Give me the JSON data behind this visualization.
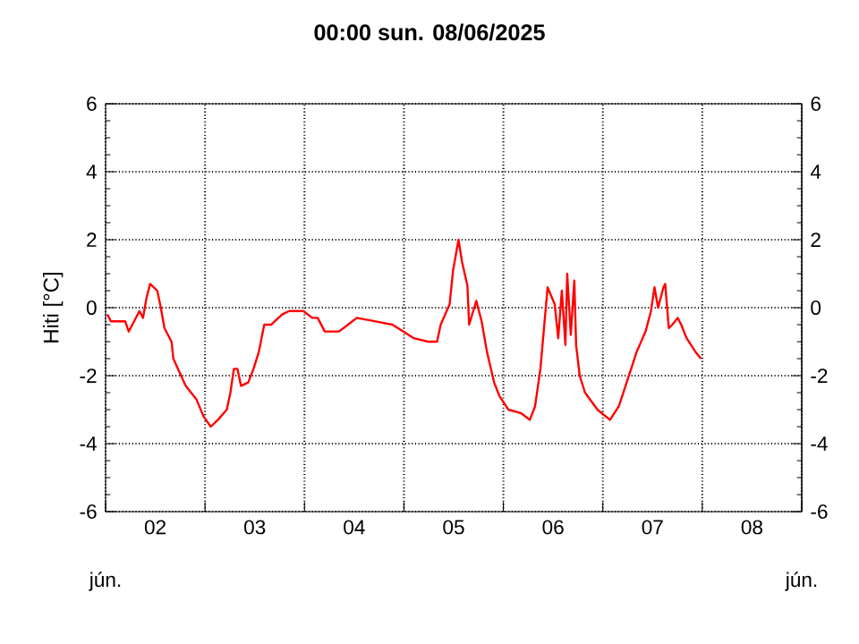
{
  "chart_data": {
    "type": "line",
    "title": "00:00   sun.  08/06/2025",
    "ylabel": "Hiti [°C]",
    "annotations": [
      "jún.",
      "jún."
    ],
    "xlim": [
      "2025-06-02T00:00",
      "2025-06-09T00:00"
    ],
    "xticks": [
      {
        "value": "2025-06-02T00:00",
        "label": null
      },
      {
        "value": "2025-06-02T12:00",
        "label": "02"
      },
      {
        "value": "2025-06-03T00:00",
        "label": null
      },
      {
        "value": "2025-06-03T12:00",
        "label": "03"
      },
      {
        "value": "2025-06-04T00:00",
        "label": null
      },
      {
        "value": "2025-06-04T12:00",
        "label": "04"
      },
      {
        "value": "2025-06-05T00:00",
        "label": null
      },
      {
        "value": "2025-06-05T12:00",
        "label": "05"
      },
      {
        "value": "2025-06-06T00:00",
        "label": null
      },
      {
        "value": "2025-06-06T12:00",
        "label": "06"
      },
      {
        "value": "2025-06-07T00:00",
        "label": null
      },
      {
        "value": "2025-06-07T12:00",
        "label": "07"
      },
      {
        "value": "2025-06-08T00:00",
        "label": null
      },
      {
        "value": "2025-06-08T12:00",
        "label": "08"
      },
      {
        "value": "2025-06-09T00:00",
        "label": null
      }
    ],
    "ylim": [
      -6,
      6
    ],
    "yticks": [
      -6,
      -4,
      -2,
      0,
      2,
      4,
      6
    ],
    "y2lim": [
      -6,
      6
    ],
    "y2ticks": [
      -6,
      -4,
      -2,
      0,
      2,
      4,
      6
    ],
    "grid": true,
    "marker": "none",
    "line_style": "solid",
    "series": [
      {
        "color": "#ff0000",
        "x": [
          "2025-06-02T00:26",
          "2025-06-02T01:17",
          "2025-06-02T04:44",
          "2025-06-02T05:35",
          "2025-06-02T06:53",
          "2025-06-02T08:10",
          "2025-06-02T09:02",
          "2025-06-02T09:54",
          "2025-06-02T10:45",
          "2025-06-02T12:28",
          "2025-06-02T13:20",
          "2025-06-02T14:12",
          "2025-06-02T15:55",
          "2025-06-02T16:21",
          "2025-06-02T19:21",
          "2025-06-02T21:56",
          "2025-06-02T23:39",
          "2025-06-03T01:23",
          "2025-06-03T03:06",
          "2025-06-03T05:15",
          "2025-06-03T06:07",
          "2025-06-03T06:58",
          "2025-06-03T07:50",
          "2025-06-03T08:41",
          "2025-06-03T10:25",
          "2025-06-03T11:42",
          "2025-06-03T12:59",
          "2025-06-03T14:17",
          "2025-06-03T16:00",
          "2025-06-03T18:35",
          "2025-06-03T20:18",
          "2025-06-03T23:44",
          "2025-06-04T01:53",
          "2025-06-04T03:11",
          "2025-06-04T04:54",
          "2025-06-04T08:20",
          "2025-06-04T10:29",
          "2025-06-04T12:38",
          "2025-06-04T16:56",
          "2025-06-04T21:14",
          "2025-06-04T23:49",
          "2025-06-05T02:24",
          "2025-06-05T05:51",
          "2025-06-05T08:00",
          "2025-06-05T08:52",
          "2025-06-05T11:01",
          "2025-06-05T11:52",
          "2025-06-05T13:10",
          "2025-06-05T14:01",
          "2025-06-05T15:19",
          "2025-06-05T15:44",
          "2025-06-05T17:28",
          "2025-06-05T18:45",
          "2025-06-05T20:02",
          "2025-06-05T21:46",
          "2025-06-05T23:03",
          "2025-06-06T01:12",
          "2025-06-06T04:13",
          "2025-06-06T06:22",
          "2025-06-06T07:39",
          "2025-06-06T08:56",
          "2025-06-06T09:48",
          "2025-06-06T10:40",
          "2025-06-06T12:23",
          "2025-06-06T13:14",
          "2025-06-06T14:06",
          "2025-06-06T14:58",
          "2025-06-06T15:24",
          "2025-06-06T16:16",
          "2025-06-06T17:07",
          "2025-06-06T17:33",
          "2025-06-06T18:25",
          "2025-06-06T19:42",
          "2025-06-06T22:43",
          "2025-06-07T01:43",
          "2025-06-07T03:52",
          "2025-06-07T06:01",
          "2025-06-07T08:10",
          "2025-06-07T10:19",
          "2025-06-07T11:37",
          "2025-06-07T12:28",
          "2025-06-07T13:20",
          "2025-06-07T14:37",
          "2025-06-07T15:03",
          "2025-06-07T15:55",
          "2025-06-07T16:46",
          "2025-06-07T18:04",
          "2025-06-07T18:55",
          "2025-06-07T20:13",
          "2025-06-07T22:22",
          "2025-06-07T23:39"
        ],
        "values": [
          -0.2,
          -0.4,
          -0.4,
          -0.7,
          -0.4,
          -0.1,
          -0.3,
          0.3,
          0.7,
          0.5,
          0.0,
          -0.6,
          -1.0,
          -1.5,
          -2.3,
          -2.7,
          -3.2,
          -3.5,
          -3.3,
          -3.0,
          -2.5,
          -1.8,
          -1.8,
          -2.3,
          -2.2,
          -1.8,
          -1.3,
          -0.5,
          -0.5,
          -0.2,
          -0.1,
          -0.1,
          -0.3,
          -0.3,
          -0.7,
          -0.7,
          -0.5,
          -0.3,
          -0.4,
          -0.5,
          -0.7,
          -0.9,
          -1.0,
          -1.0,
          -0.5,
          0.1,
          1.1,
          2.0,
          1.35,
          0.65,
          -0.5,
          0.2,
          -0.4,
          -1.3,
          -2.2,
          -2.6,
          -3.0,
          -3.1,
          -3.3,
          -2.9,
          -1.8,
          -0.6,
          0.6,
          0.1,
          -0.9,
          0.5,
          -1.1,
          1.0,
          -0.8,
          0.8,
          -1.1,
          -2.0,
          -2.5,
          -3.0,
          -3.3,
          -2.9,
          -2.1,
          -1.3,
          -0.7,
          -0.1,
          0.6,
          0.0,
          0.6,
          0.7,
          -0.6,
          -0.5,
          -0.3,
          -0.5,
          -0.9,
          -1.3,
          -1.5
        ]
      }
    ]
  }
}
